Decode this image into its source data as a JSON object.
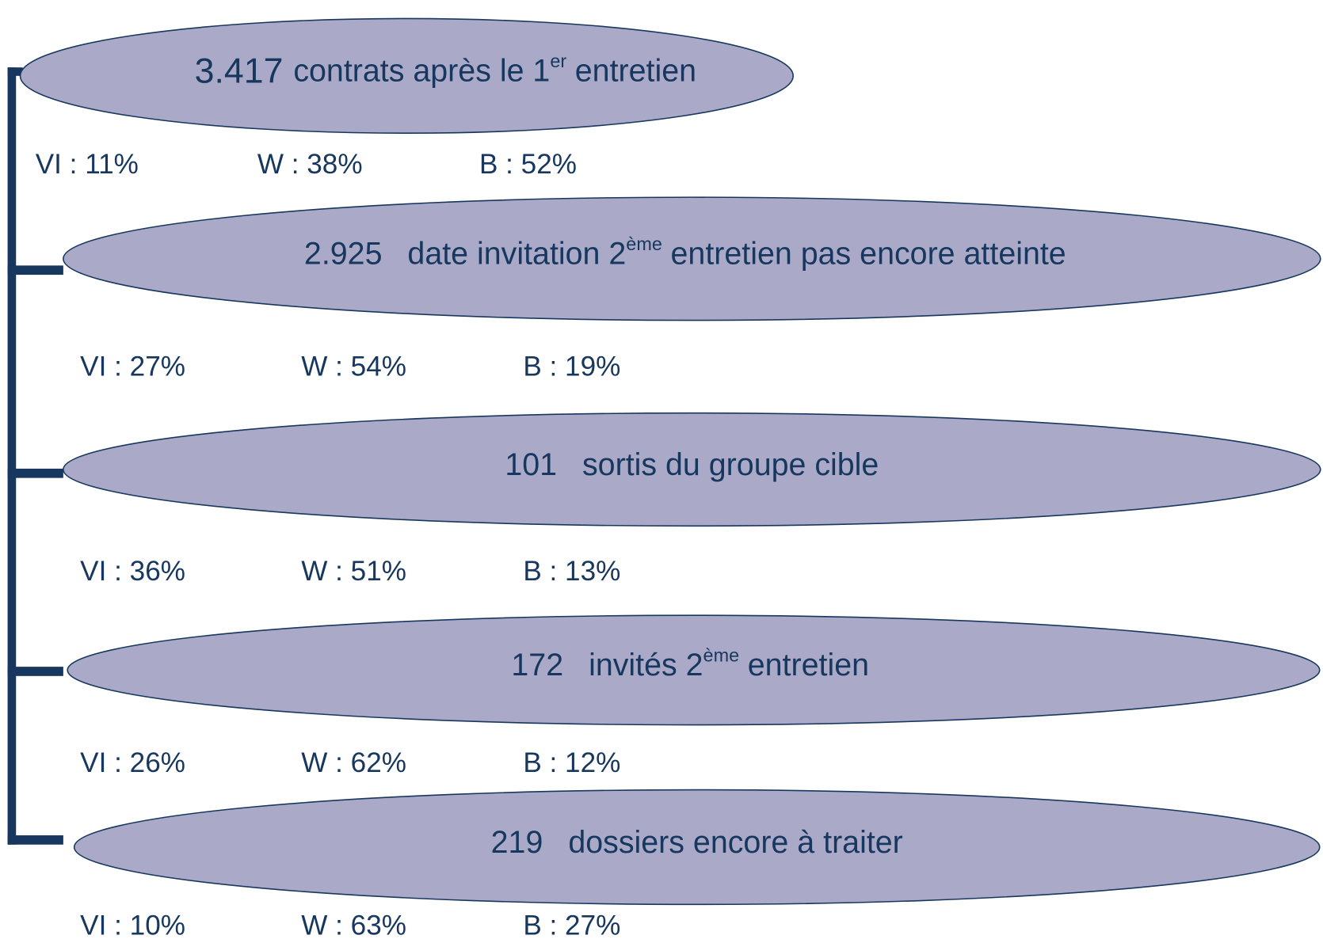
{
  "nodes": [
    {
      "count": "3.417",
      "label": "contrats après le 1",
      "sup": "er",
      "label_after": "entretien",
      "stats": [
        "VI : 11%",
        "W : 38%",
        "B : 52%"
      ]
    },
    {
      "count": "2.925",
      "label": "date invitation 2",
      "sup": "ème",
      "label_after": "entretien pas encore atteinte",
      "stats": [
        "VI : 27%",
        "W : 54%",
        "B : 19%"
      ]
    },
    {
      "count": "101",
      "label": "sortis du groupe cible",
      "stats": [
        "VI : 36%",
        "W : 51%",
        "B : 13%"
      ]
    },
    {
      "count": "172",
      "label": "invités 2",
      "sup": "ème",
      "label_after": "entretien",
      "stats": [
        "VI : 26%",
        "W : 62%",
        "B : 12%"
      ]
    },
    {
      "count": "219",
      "label": "dossiers encore à traiter",
      "stats": [
        "VI : 10%",
        "W : 63%",
        "B : 27%"
      ]
    }
  ]
}
